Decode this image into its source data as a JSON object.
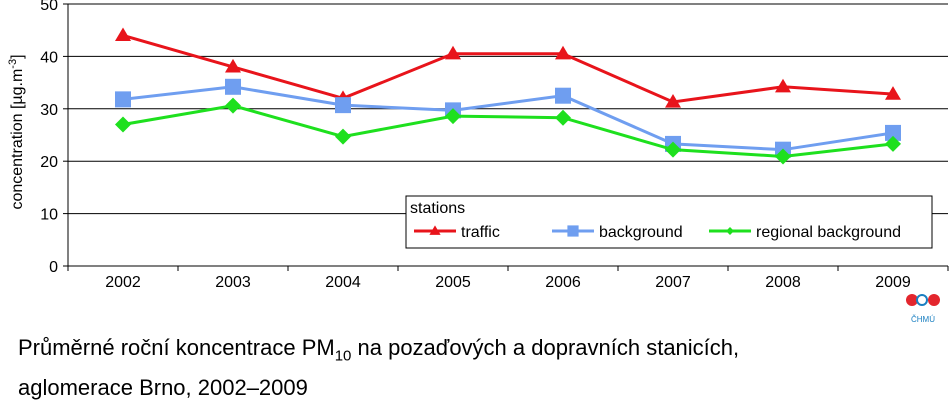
{
  "chart_data": {
    "type": "line",
    "categories": [
      "2002",
      "2003",
      "2004",
      "2005",
      "2006",
      "2007",
      "2008",
      "2009"
    ],
    "ylabel": "concentration  [µg.m-3]",
    "ylabel_main": "concentration  [µg.m",
    "ylabel_exp": "-3",
    "ylabel_end": "]",
    "ylim": [
      0,
      50
    ],
    "yticks": [
      0,
      10,
      20,
      30,
      40,
      50
    ],
    "grid": true,
    "legend": {
      "title": "stations",
      "position": "bottom-right"
    },
    "series": [
      {
        "name": "traffic",
        "color": "#e8141b",
        "marker": "triangle",
        "values": [
          44.0,
          38.0,
          32.0,
          40.5,
          40.5,
          31.3,
          34.2,
          32.8
        ]
      },
      {
        "name": "background",
        "color": "#6f9ef0",
        "marker": "square",
        "values": [
          31.8,
          34.2,
          30.7,
          29.7,
          32.5,
          23.3,
          22.2,
          25.4
        ]
      },
      {
        "name": "regional background",
        "color": "#1ee01e",
        "marker": "diamond",
        "values": [
          27.0,
          30.6,
          24.7,
          28.6,
          28.3,
          22.2,
          20.9,
          23.3
        ]
      }
    ]
  },
  "caption": {
    "line1_pre": "Průměrné roční koncentrace PM",
    "line1_sub": "10",
    "line1_post": " na pozaďových a dopravních stanicích,",
    "line2": "aglomerace Brno, 2002–2009"
  },
  "logo": {
    "text": "ČHMÚ",
    "colors": {
      "red": "#e3262d",
      "blue": "#1a7fc1"
    }
  }
}
